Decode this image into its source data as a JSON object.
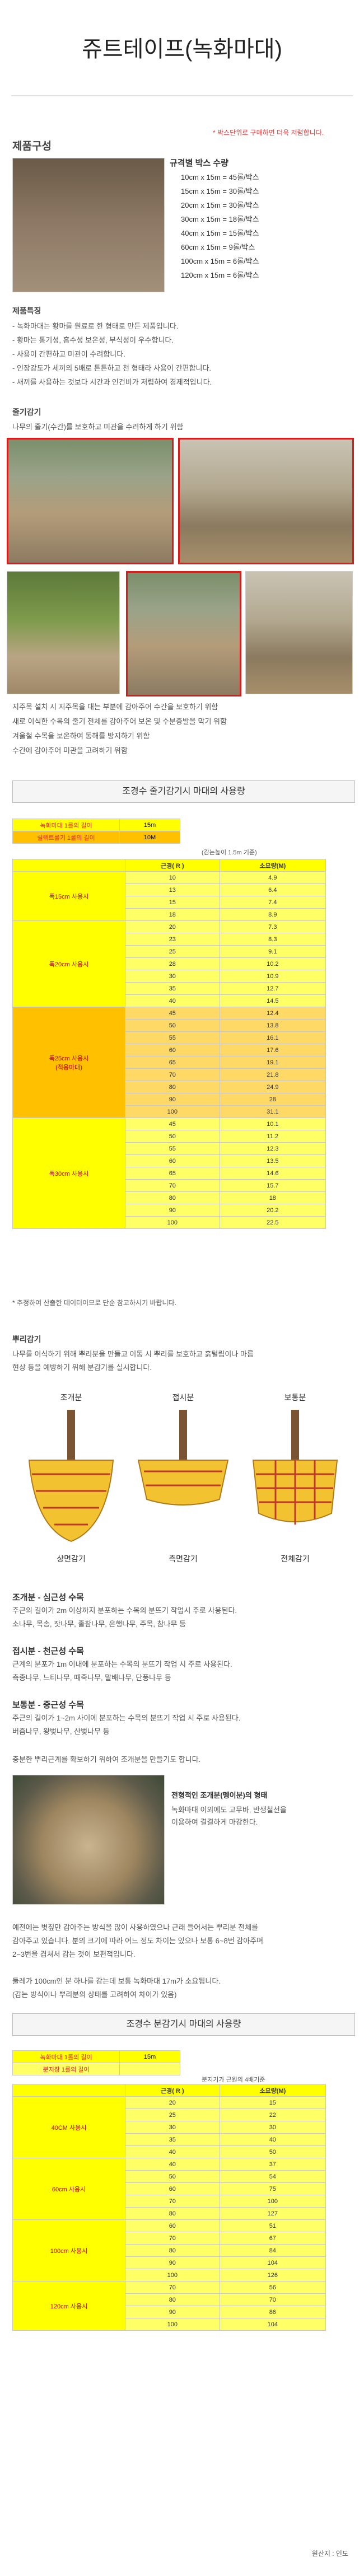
{
  "page": {
    "title": "쥬트테이프(녹화마대)",
    "notice": "* 박스단위로 구매하면 더욱 저렴합니다."
  },
  "components": {
    "heading": "제품구성",
    "spec_title": "규격별 박스 수량",
    "specs": [
      "10cm x 15m = 45롤/박스",
      "15cm x 15m = 30롤/박스",
      "20cm x 15m = 30롤/박스",
      "30cm x 15m = 18롤/박스",
      "40cm x 15m = 15롤/박스",
      "60cm x 15m = 9롤/박스",
      "100cm x 15m = 6롤/박스",
      "120cm x 15m = 6롤/박스"
    ]
  },
  "features": {
    "heading": "제품특징",
    "lines": [
      "- 녹화마대는 황마를 원료로 한 형태로 만든 제품입니다.",
      "- 황마는 통기성, 흡수성 보온성, 부식성이 우수합니다.",
      "- 사용이 간편하고 미관이 수려합니다.",
      "- 인장강도가 세끼의 5배로 튼튼하고 천 형태라 사용이 간편합니다.",
      "- 새끼를 사용하는 것보다 시간과 인건비가 저렴하여 경제적입니다."
    ]
  },
  "trunk_wrap": {
    "heading": "줄기감기",
    "subtitle": "나무의 줄기(수간)를 보호하고 미관을 수려하게 하기 위함",
    "desc_lines": [
      "지주목 설치 시 지주목을 대는 부분에 감아주어 수간을 보호하기 위함",
      "새로 이식한 수목의 줄기 전체를 감아주어 보온 및 수분증발을 막기 위함",
      "겨울철 수목을 보온하여 동해를 방지하기 위함",
      "수간에 감아주어 미관을 고려하기 위함"
    ]
  },
  "trunk_table": {
    "banner": "조경수 줄기감기시 마대의 사용량",
    "legend": [
      {
        "label": "녹화마대 1롤의 길이",
        "value": "15m"
      },
      {
        "label": "릴렉트롤기 1롤의 길이",
        "value": "10M"
      }
    ],
    "basis_note": "(감는높이 1.5m 기준)",
    "col_headers": [
      "근경( R )",
      "소요량(M)"
    ],
    "groups": [
      {
        "label": "폭15cm 사용시",
        "style": "y",
        "rows": [
          [
            "10",
            "4.9"
          ],
          [
            "13",
            "6.4"
          ],
          [
            "15",
            "7.4"
          ],
          [
            "18",
            "8.9"
          ]
        ]
      },
      {
        "label": "폭20cm 사용시",
        "style": "y",
        "rows": [
          [
            "20",
            "7.3"
          ],
          [
            "23",
            "8.3"
          ],
          [
            "25",
            "9.1"
          ],
          [
            "28",
            "10.2"
          ],
          [
            "30",
            "10.9"
          ],
          [
            "35",
            "12.7"
          ],
          [
            "40",
            "14.5"
          ]
        ]
      },
      {
        "label": "폭25cm 사용시\n(적용마대)",
        "style": "o",
        "rows": [
          [
            "45",
            "12.4"
          ],
          [
            "50",
            "13.8"
          ],
          [
            "55",
            "16.1"
          ],
          [
            "60",
            "17.6"
          ],
          [
            "65",
            "19.1"
          ],
          [
            "70",
            "21.8"
          ],
          [
            "80",
            "24.9"
          ],
          [
            "90",
            "28"
          ],
          [
            "100",
            "31.1"
          ]
        ]
      },
      {
        "label": "폭30cm 사용시",
        "style": "y",
        "rows": [
          [
            "45",
            "10.1"
          ],
          [
            "50",
            "11.2"
          ],
          [
            "55",
            "12.3"
          ],
          [
            "60",
            "13.5"
          ],
          [
            "65",
            "14.6"
          ],
          [
            "70",
            "15.7"
          ],
          [
            "80",
            "18"
          ],
          [
            "90",
            "20.2"
          ],
          [
            "100",
            "22.5"
          ]
        ]
      }
    ],
    "footnote": "* 추정하여 산출한 데이터이므로 단순 참고하시기 바랍니다."
  },
  "root_wrap": {
    "heading": "뿌리감기",
    "lines": [
      "나무를 이식하기 위해 뿌리분을 만들고 이동 시 뿌리를 보호하고 흙털림이나 마름",
      "현상 등을 예방하기 위해 분감기를 실시합니다."
    ],
    "diagrams": [
      {
        "top": "조개분",
        "bottom": "상면감기"
      },
      {
        "top": "접시분",
        "bottom": "측면감기"
      },
      {
        "top": "보통분",
        "bottom": "전체감기"
      }
    ]
  },
  "methods": [
    {
      "title": "조개분 - 심근성 수목",
      "lines": [
        "주근의 길이가 2m 이상까지 분포하는 수목의 분뜨기 작업시 주로 사용된다.",
        "소나무, 목송, 잣나무, 졸참나무, 은행나무, 주목, 참나무 등"
      ]
    },
    {
      "title": "접시분 - 천근성 수목",
      "lines": [
        "근계의 분포가 1m 이내에 분포하는 수목의 분뜨기 작업 시 주로 사용된다.",
        "측종나무, 느티나무, 때죽나무, 말배나무, 단풍나무 등"
      ]
    },
    {
      "title": "보통분 - 중근성 수목",
      "lines": [
        "주근의 길이가 1~2m 사이에 분포하는 수목의 분뜨기 작업 시 주로 사용된다.",
        "버즘나무, 왕벚나무, 산벚나무 등"
      ]
    }
  ],
  "root_note": "충분한 뿌리근계를 확보하기 위하여 조개분을 만들기도 합니다.",
  "ball_photo_text": {
    "title": "전형적인 조개분(뗑이분)의 형태",
    "lines": [
      "녹화마대 이외에도 고무바, 반생철선을",
      "이용하여 결결하게 마감한다."
    ]
  },
  "root_desc": [
    "예전에는 볏짚만 감아주는 방식을 많이 사용하였으나 근래 들어서는 뿌리분 전체를",
    "감아주고 있습니다. 분의 크기에 따라 어느 정도 차이는 있으나 보통 6~8번 감아주며",
    "2~3번을 겹쳐서 감는 것이 보편적입니다.",
    "",
    "둘레가 100cm인 분 하나를 감는데 보통 녹화마대 17m가 소요됩니다.",
    "(감는 방식이나 뿌리분의 상태를 고려하여 차이가 있음)"
  ],
  "root_table": {
    "banner": "조경수 분감기시 마대의 사용량",
    "legend": [
      {
        "label": "녹화마대 1롤의 길이",
        "value": "15m"
      },
      {
        "label": "분지장 1롤의 길이",
        "value": ""
      }
    ],
    "basis_note": "분지기가 근원의 4배기준",
    "col_headers": [
      "근경( R )",
      "소요량(M)"
    ],
    "groups": [
      {
        "label": "40CM 사용시",
        "rows": [
          [
            "20",
            "15"
          ],
          [
            "25",
            "22"
          ],
          [
            "30",
            "30"
          ],
          [
            "35",
            "40"
          ],
          [
            "40",
            "50"
          ]
        ]
      },
      {
        "label": "60cm 사용시",
        "rows": [
          [
            "40",
            "37"
          ],
          [
            "50",
            "54"
          ],
          [
            "60",
            "75"
          ],
          [
            "70",
            "100"
          ],
          [
            "80",
            "127"
          ]
        ]
      },
      {
        "label": "100cm 사용시",
        "rows": [
          [
            "60",
            "51"
          ],
          [
            "70",
            "67"
          ],
          [
            "80",
            "84"
          ],
          [
            "90",
            "104"
          ],
          [
            "100",
            "126"
          ]
        ]
      },
      {
        "label": "120cm 사용시",
        "rows": [
          [
            "70",
            "56"
          ],
          [
            "80",
            "70"
          ],
          [
            "90",
            "86"
          ],
          [
            "100",
            "104"
          ]
        ]
      }
    ]
  },
  "footer": {
    "origin": "원산지 : 인도"
  }
}
